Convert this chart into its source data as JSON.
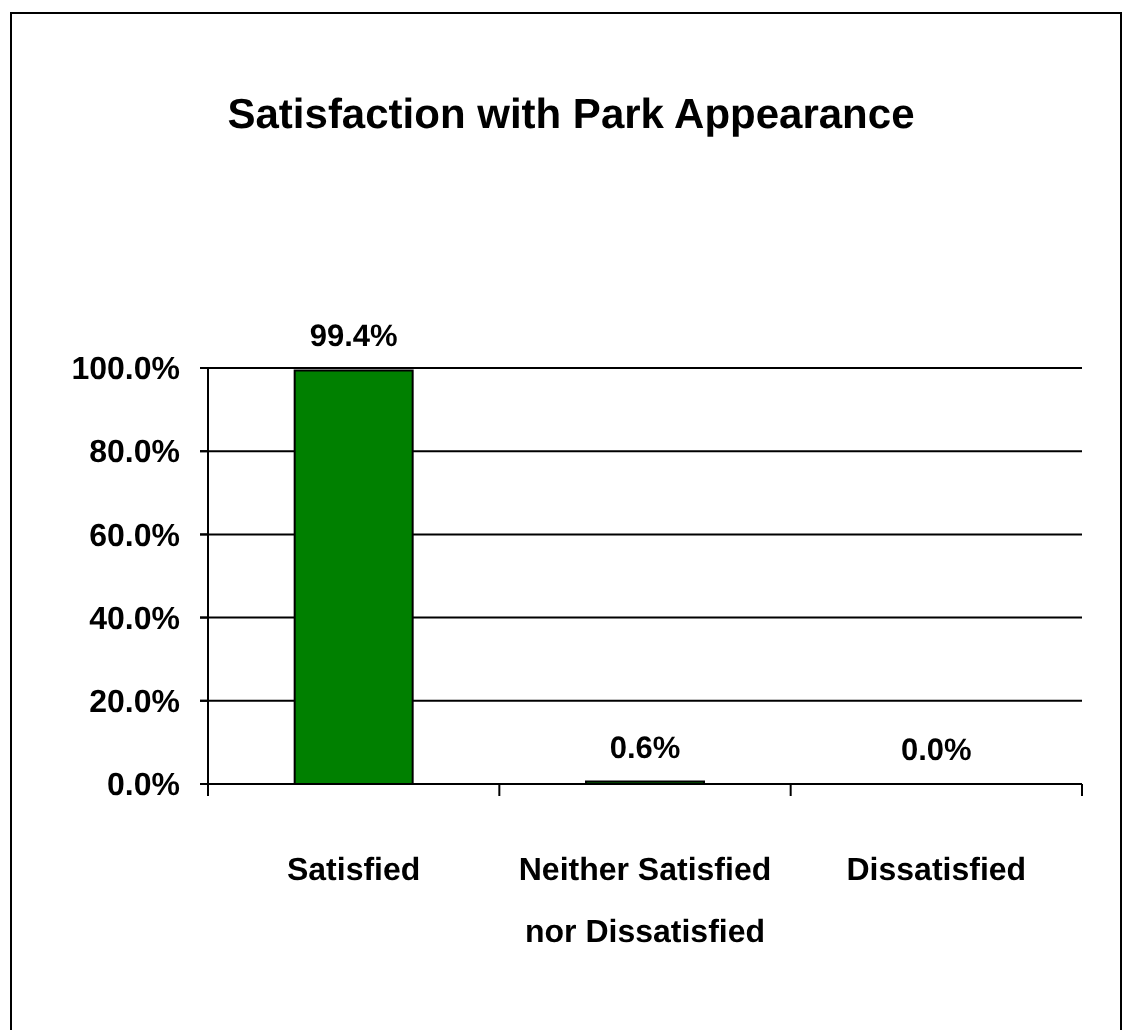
{
  "chart_data": {
    "type": "bar",
    "title": "Satisfaction with Park Appearance",
    "categories": [
      "Satisfied",
      "Neither Satisfied nor Dissatisfied",
      "Dissatisfied"
    ],
    "values": [
      99.4,
      0.6,
      0
    ],
    "color": "#008000",
    "value_labels": [
      "99.4%",
      "0.6%",
      "0.0%"
    ],
    "ylim": [
      0,
      100
    ],
    "yticks": [
      {
        "value": 0,
        "label": "0.0%"
      },
      {
        "value": 20,
        "label": "20.0%"
      },
      {
        "value": 40,
        "label": "40.0%"
      },
      {
        "value": 60,
        "label": "60.0%"
      },
      {
        "value": 80,
        "label": "80.0%"
      },
      {
        "value": 100,
        "label": "100.0%"
      }
    ],
    "grid": "y"
  }
}
